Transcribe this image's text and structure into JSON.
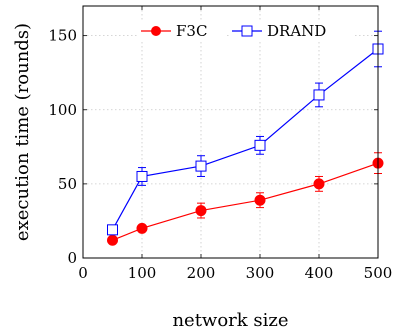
{
  "chart_data": {
    "type": "line",
    "title": "",
    "xlabel": "network size",
    "ylabel": "execution time (rounds)",
    "xlim": [
      0,
      500
    ],
    "ylim": [
      0,
      170
    ],
    "xticks": [
      0,
      100,
      200,
      300,
      400,
      500
    ],
    "yticks": [
      0,
      50,
      100,
      150
    ],
    "grid": true,
    "legend_position": "top-right",
    "x": [
      50,
      100,
      200,
      300,
      400,
      500
    ],
    "series": [
      {
        "name": "F3C",
        "color": "#ff0000",
        "marker": "filled-circle",
        "values": [
          12,
          20,
          32,
          39,
          50,
          64
        ],
        "error": [
          2,
          2,
          5,
          5,
          5,
          7
        ]
      },
      {
        "name": "DRAND",
        "color": "#0000ff",
        "marker": "open-square",
        "values": [
          19,
          55,
          62,
          76,
          110,
          141
        ],
        "error": [
          2,
          6,
          7,
          6,
          8,
          12
        ]
      }
    ]
  }
}
